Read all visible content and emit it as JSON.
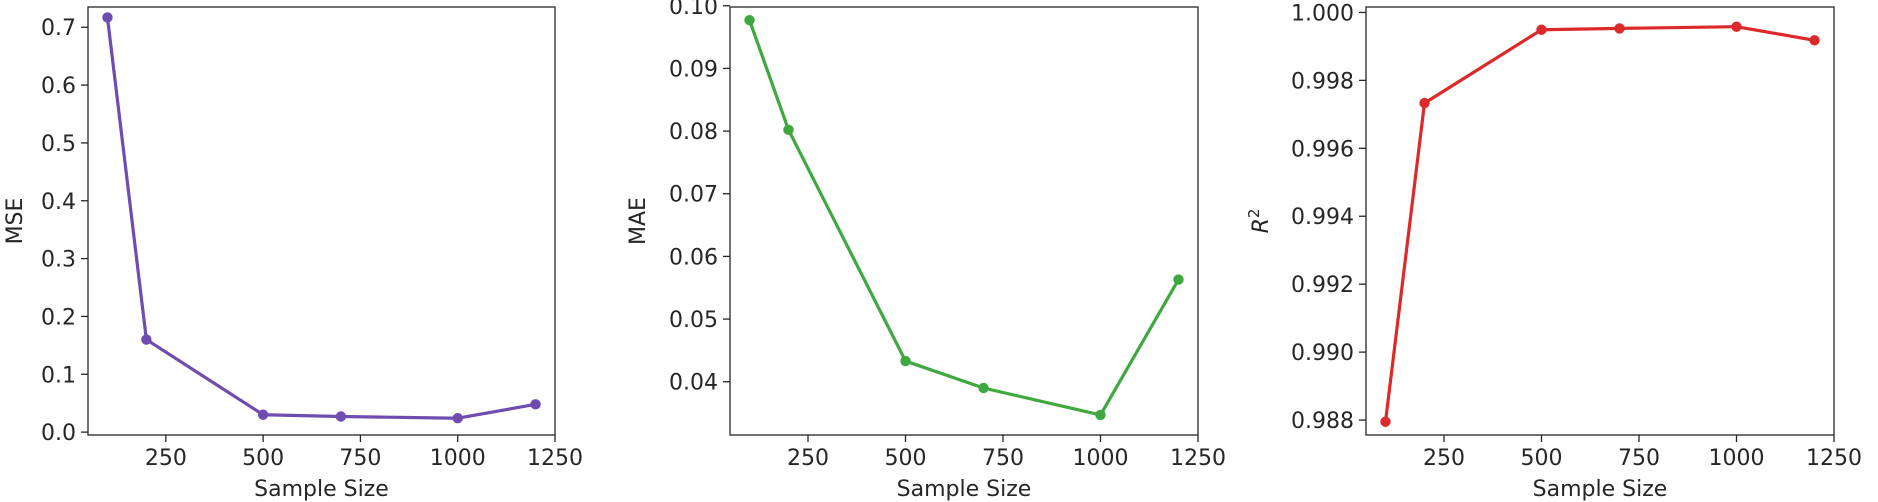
{
  "chart_data": [
    {
      "type": "line",
      "xlabel": "Sample Size",
      "ylabel": "MSE",
      "color": "#6f4cb0",
      "x": [
        100,
        200,
        500,
        700,
        1000,
        1200
      ],
      "y": [
        0.717,
        0.16,
        0.03,
        0.027,
        0.024,
        0.048
      ],
      "xlim": [
        50,
        1250
      ],
      "ylim": [
        -0.005,
        0.735
      ],
      "xticks": [
        250,
        500,
        750,
        1000,
        1250
      ],
      "xtick_labels": [
        "250",
        "500",
        "750",
        "1000",
        "1250"
      ],
      "yticks": [
        0.0,
        0.1,
        0.2,
        0.3,
        0.4,
        0.5,
        0.6,
        0.7
      ],
      "ytick_labels": [
        "0.0",
        "0.1",
        "0.2",
        "0.3",
        "0.4",
        "0.5",
        "0.6",
        "0.7"
      ],
      "grid": false
    },
    {
      "type": "line",
      "xlabel": "Sample Size",
      "ylabel": "MAE",
      "color": "#3fa83f",
      "x": [
        100,
        200,
        500,
        700,
        1000,
        1200
      ],
      "y": [
        0.0977,
        0.0802,
        0.0433,
        0.039,
        0.0347,
        0.0563
      ],
      "xlim": [
        50,
        1250
      ],
      "ylim": [
        0.0315,
        0.0998
      ],
      "xticks": [
        250,
        500,
        750,
        1000,
        1250
      ],
      "xtick_labels": [
        "250",
        "500",
        "750",
        "1000",
        "1250"
      ],
      "yticks": [
        0.04,
        0.05,
        0.06,
        0.07,
        0.08,
        0.09,
        0.1
      ],
      "ytick_labels": [
        "0.04",
        "0.05",
        "0.06",
        "0.07",
        "0.08",
        "0.09",
        "0.10"
      ],
      "grid": false
    },
    {
      "type": "line",
      "xlabel": "Sample Size",
      "ylabel": "R",
      "ylabel_superscript": "2",
      "color": "#dc2a2a",
      "x": [
        100,
        200,
        500,
        700,
        1000,
        1200
      ],
      "y": [
        0.98795,
        0.99733,
        0.99949,
        0.99953,
        0.99958,
        0.99918
      ],
      "xlim": [
        50,
        1250
      ],
      "ylim": [
        0.98756,
        1.00016
      ],
      "xticks": [
        250,
        500,
        750,
        1000,
        1250
      ],
      "xtick_labels": [
        "250",
        "500",
        "750",
        "1000",
        "1250"
      ],
      "yticks": [
        0.988,
        0.99,
        0.992,
        0.994,
        0.996,
        0.998,
        1.0
      ],
      "ytick_labels": [
        "0.988",
        "0.990",
        "0.992",
        "0.994",
        "0.996",
        "0.998",
        "1.000"
      ],
      "grid": false
    }
  ]
}
